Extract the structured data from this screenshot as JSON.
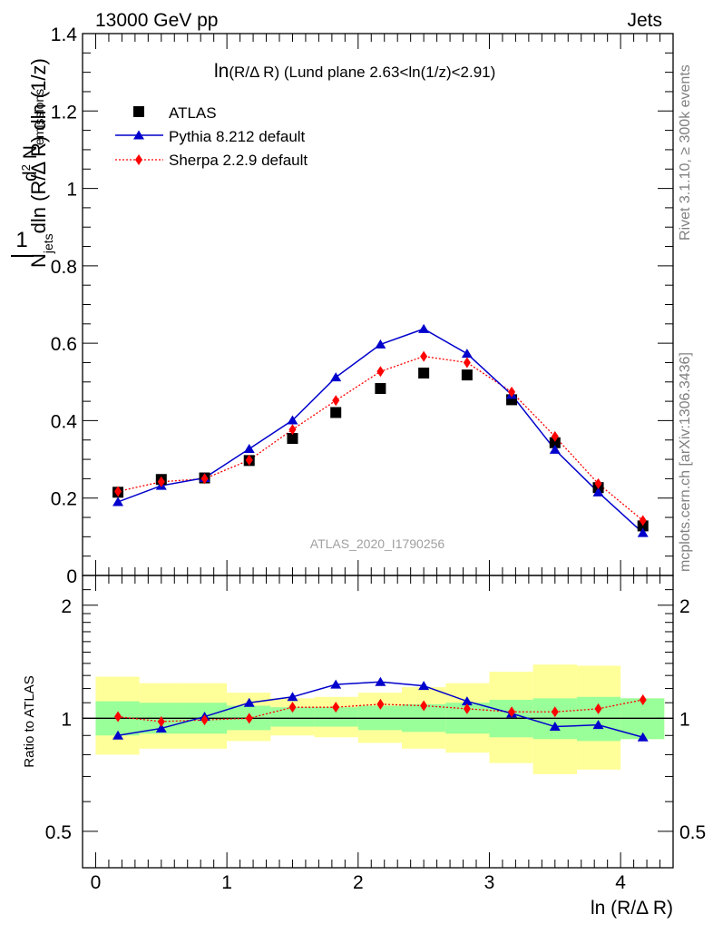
{
  "header": {
    "left": "13000 GeV pp",
    "right": "Jets"
  },
  "side_labels": {
    "rivet": "Rivet 3.1.10, ≥ 300k events",
    "mcplots": "mcplots.cern.ch [arXiv:1306.3436]"
  },
  "analysis_label": "ATLAS_2020_I1790256",
  "title": {
    "main": "ln",
    "paren": "(R/Δ R)",
    "rest": " (Lund plane 2.63<ln(1/z)<2.91)"
  },
  "top_ylabel": {
    "one": "1",
    "n": "N",
    "jets": "jets",
    "den": "dln (R/Δ R) dln (1/z)",
    "d2": "d",
    "two": "2",
    "nem": " N",
    "emissions": "emissions"
  },
  "bottom_ylabel": "Ratio to ATLAS",
  "xlabel": "ln (R/Δ R)",
  "colors": {
    "data": "#000000",
    "pythia": "#0000cc",
    "sherpa": "#ff0000",
    "band_inner": "#99ff99",
    "band_outer": "#ffff99"
  },
  "chart_data": [
    {
      "type": "scatter",
      "xlim": [
        -0.1,
        4.4
      ],
      "ylim": [
        0,
        1.4
      ],
      "yticks": [
        0,
        0.2,
        0.4,
        0.6,
        0.8,
        1,
        1.2,
        1.4
      ],
      "yticklabels": [
        "0",
        "0.2",
        "0.4",
        "0.6",
        "0.8",
        "1",
        "1.2",
        "1.4"
      ],
      "x": [
        0.17,
        0.5,
        0.83,
        1.17,
        1.5,
        1.83,
        2.17,
        2.5,
        2.83,
        3.17,
        3.5,
        3.83,
        4.17
      ],
      "legend": {
        "placement": "top-left",
        "entries": [
          "ATLAS",
          "Pythia 8.212 default",
          "Sherpa 2.2.9 default"
        ]
      },
      "series": [
        {
          "name": "ATLAS",
          "values": [
            0.215,
            0.248,
            0.252,
            0.297,
            0.354,
            0.421,
            0.483,
            0.523,
            0.518,
            0.454,
            0.343,
            0.227,
            0.128
          ]
        },
        {
          "name": "Pythia 8.212 default",
          "values": [
            0.19,
            0.232,
            0.252,
            0.327,
            0.401,
            0.512,
            0.597,
            0.637,
            0.573,
            0.467,
            0.325,
            0.215,
            0.11
          ]
        },
        {
          "name": "Sherpa 2.2.9 default",
          "values": [
            0.217,
            0.242,
            0.25,
            0.298,
            0.377,
            0.452,
            0.527,
            0.566,
            0.55,
            0.474,
            0.359,
            0.237,
            0.142
          ]
        }
      ]
    },
    {
      "type": "line",
      "ylabel": "Ratio to ATLAS",
      "xlabel": "ln (R/Δ R)",
      "xlim": [
        -0.1,
        4.4
      ],
      "ylim": [
        0.4,
        2.4
      ],
      "yscale": "log",
      "yticks": [
        0.5,
        1,
        2
      ],
      "yticklabels": [
        "0.5",
        "1",
        "2"
      ],
      "xticks": [
        0,
        1,
        2,
        3,
        4
      ],
      "xticklabels": [
        "0",
        "1",
        "2",
        "3",
        "4"
      ],
      "bin_edges": [
        0,
        0.333,
        0.667,
        1,
        1.333,
        1.667,
        2,
        2.333,
        2.667,
        3,
        3.333,
        3.667,
        4,
        4.333
      ],
      "band_inner": {
        "low": [
          0.9,
          0.91,
          0.91,
          0.93,
          0.95,
          0.95,
          0.93,
          0.92,
          0.91,
          0.89,
          0.88,
          0.87,
          0.88
        ],
        "high": [
          1.11,
          1.1,
          1.1,
          1.08,
          1.07,
          1.07,
          1.08,
          1.09,
          1.1,
          1.12,
          1.13,
          1.14,
          1.13
        ]
      },
      "band_outer": {
        "low": [
          0.8,
          0.83,
          0.83,
          0.87,
          0.9,
          0.89,
          0.86,
          0.83,
          0.81,
          0.76,
          0.71,
          0.73,
          0.88
        ],
        "high": [
          1.29,
          1.24,
          1.24,
          1.17,
          1.13,
          1.14,
          1.17,
          1.21,
          1.24,
          1.33,
          1.39,
          1.38,
          1.13
        ]
      },
      "series": [
        {
          "name": "Pythia 8.212 default",
          "values": [
            0.9,
            0.94,
            1.01,
            1.1,
            1.14,
            1.23,
            1.25,
            1.22,
            1.11,
            1.03,
            0.95,
            0.96,
            0.89
          ]
        },
        {
          "name": "Sherpa 2.2.9 default",
          "values": [
            1.01,
            0.98,
            0.99,
            1.0,
            1.07,
            1.07,
            1.09,
            1.08,
            1.06,
            1.04,
            1.04,
            1.06,
            1.12
          ]
        }
      ]
    }
  ]
}
